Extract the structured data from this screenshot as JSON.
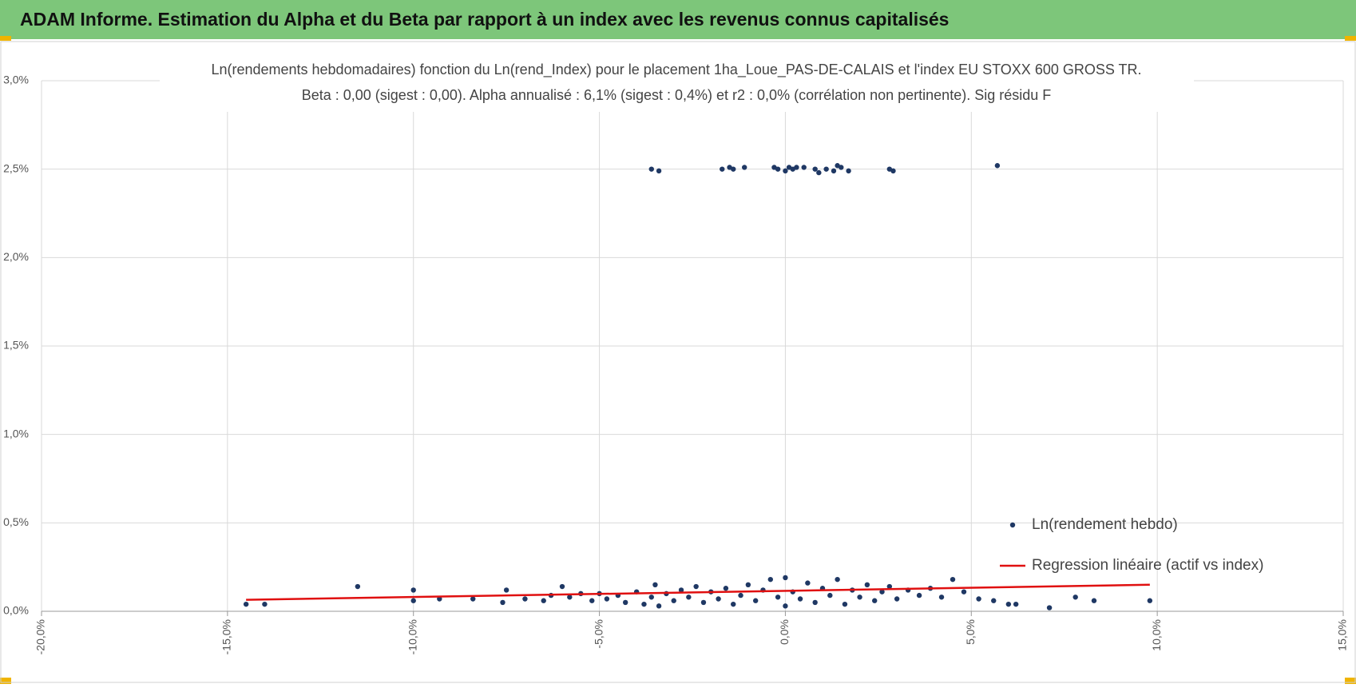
{
  "header": {
    "title": "ADAM Informe. Estimation du Alpha et du Beta par rapport à un index avec les revenus connus capitalisés"
  },
  "chart_data": {
    "type": "scatter",
    "title": "Ln(rendements hebdomadaires) fonction du Ln(rend_Index) pour le placement 1ha_Loue_PAS-DE-CALAIS et l'index EU STOXX 600 GROSS TR.",
    "subtitle": "Beta : 0,00 (sigest : 0,00). Alpha annualisé : 6,1% (sigest : 0,4%) et r2 : 0,0% (corrélation non pertinente). Sig résidu F",
    "xlim": [
      -20,
      15
    ],
    "xticks": [
      {
        "value": -20,
        "label": "-20,0%"
      },
      {
        "value": -15,
        "label": "-15,0%"
      },
      {
        "value": -10,
        "label": "-10,0%"
      },
      {
        "value": -5,
        "label": "-5,0%"
      },
      {
        "value": 0,
        "label": "0,0%"
      },
      {
        "value": 5,
        "label": "5,0%"
      },
      {
        "value": 10,
        "label": "10,0%"
      },
      {
        "value": 15,
        "label": "15,0%"
      }
    ],
    "ylim": [
      0,
      3
    ],
    "yticks": [
      {
        "value": 0,
        "label": "0,0%"
      },
      {
        "value": 0.5,
        "label": "0,5%"
      },
      {
        "value": 1,
        "label": "1,0%"
      },
      {
        "value": 1.5,
        "label": "1,5%"
      },
      {
        "value": 2,
        "label": "2,0%"
      },
      {
        "value": 2.5,
        "label": "2,5%"
      },
      {
        "value": 3,
        "label": "3,0%"
      }
    ],
    "grid": true,
    "legend": "right",
    "series": [
      {
        "name": "Ln(rendement hebdo)",
        "color": "#1f3864",
        "type": "scatter",
        "x": [
          -14.5,
          -14.0,
          -11.5,
          -10.0,
          -10.0,
          -9.3,
          -8.4,
          -7.5,
          -7.6,
          -7.0,
          -6.5,
          -6.3,
          -6.0,
          -5.8,
          -5.5,
          -5.2,
          -5.0,
          -4.8,
          -4.5,
          -4.3,
          -4.0,
          -3.8,
          -3.6,
          -3.5,
          -3.4,
          -3.2,
          -3.0,
          -2.8,
          -2.6,
          -2.4,
          -2.2,
          -2.0,
          -1.8,
          -1.6,
          -1.4,
          -1.2,
          -1.0,
          -0.8,
          -0.6,
          -0.4,
          -0.2,
          0.0,
          0.0,
          0.2,
          0.4,
          0.6,
          0.8,
          1.0,
          1.2,
          1.4,
          1.6,
          1.8,
          2.0,
          2.2,
          2.4,
          2.6,
          2.8,
          3.0,
          3.3,
          3.6,
          3.9,
          4.2,
          4.5,
          4.8,
          5.2,
          5.6,
          6.0,
          6.2,
          7.1,
          7.8,
          8.3,
          9.8,
          -3.6,
          -3.4,
          -1.7,
          -1.5,
          -1.4,
          -1.1,
          -0.3,
          -0.2,
          0.0,
          0.1,
          0.2,
          0.3,
          0.5,
          0.8,
          0.9,
          1.1,
          1.3,
          1.4,
          1.5,
          1.7,
          2.8,
          2.9,
          5.7
        ],
        "values": [
          0.04,
          0.04,
          0.14,
          0.12,
          0.06,
          0.07,
          0.07,
          0.12,
          0.05,
          0.07,
          0.06,
          0.09,
          0.14,
          0.08,
          0.1,
          0.06,
          0.1,
          0.07,
          0.09,
          0.05,
          0.11,
          0.04,
          0.08,
          0.15,
          0.03,
          0.1,
          0.06,
          0.12,
          0.08,
          0.14,
          0.05,
          0.11,
          0.07,
          0.13,
          0.04,
          0.09,
          0.15,
          0.06,
          0.12,
          0.18,
          0.08,
          0.19,
          0.03,
          0.11,
          0.07,
          0.16,
          0.05,
          0.13,
          0.09,
          0.18,
          0.04,
          0.12,
          0.08,
          0.15,
          0.06,
          0.11,
          0.14,
          0.07,
          0.12,
          0.09,
          0.13,
          0.08,
          0.18,
          0.11,
          0.07,
          0.06,
          0.04,
          0.04,
          0.02,
          0.08,
          0.06,
          0.06,
          2.5,
          2.49,
          2.5,
          2.51,
          2.5,
          2.51,
          2.51,
          2.5,
          2.49,
          2.51,
          2.5,
          2.51,
          2.51,
          2.5,
          2.48,
          2.5,
          2.49,
          2.52,
          2.51,
          2.49,
          2.5,
          2.49,
          2.52
        ]
      },
      {
        "name": "Regression linéaire (actif vs index)",
        "color": "#e01010",
        "type": "line",
        "x": [
          -14.5,
          9.8
        ],
        "values": [
          0.065,
          0.15
        ]
      }
    ]
  }
}
